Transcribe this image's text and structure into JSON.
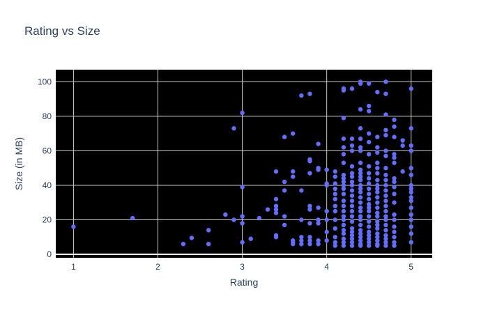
{
  "chart_data": {
    "type": "scatter",
    "title": "Rating vs Size",
    "xlabel": "Rating",
    "ylabel": "Size (in MB)",
    "xlim": [
      0.79,
      5.25
    ],
    "ylim": [
      -2,
      107
    ],
    "x_ticks": [
      1,
      2,
      3,
      4,
      5
    ],
    "y_ticks": [
      0,
      20,
      40,
      60,
      80,
      100
    ],
    "grid": true,
    "background": "#000000",
    "marker_color": "#636efa",
    "points": [
      [
        1.0,
        16
      ],
      [
        1.7,
        21
      ],
      [
        2.3,
        6
      ],
      [
        2.4,
        9.5
      ],
      [
        2.6,
        6
      ],
      [
        2.6,
        14
      ],
      [
        2.8,
        23
      ],
      [
        2.9,
        20
      ],
      [
        2.9,
        73
      ],
      [
        3.0,
        7
      ],
      [
        3.0,
        18
      ],
      [
        3.0,
        22
      ],
      [
        3.0,
        39
      ],
      [
        3.0,
        82
      ],
      [
        3.1,
        9
      ],
      [
        3.2,
        21
      ],
      [
        3.3,
        26
      ],
      [
        3.4,
        10
      ],
      [
        3.4,
        11
      ],
      [
        3.4,
        24
      ],
      [
        3.4,
        26
      ],
      [
        3.4,
        28
      ],
      [
        3.4,
        32
      ],
      [
        3.4,
        48
      ],
      [
        3.5,
        17
      ],
      [
        3.5,
        22
      ],
      [
        3.5,
        37
      ],
      [
        3.5,
        42
      ],
      [
        3.5,
        68
      ],
      [
        3.6,
        6
      ],
      [
        3.6,
        7
      ],
      [
        3.6,
        8
      ],
      [
        3.6,
        45
      ],
      [
        3.6,
        48
      ],
      [
        3.6,
        70
      ],
      [
        3.7,
        6
      ],
      [
        3.7,
        8
      ],
      [
        3.7,
        10
      ],
      [
        3.7,
        20
      ],
      [
        3.7,
        37
      ],
      [
        3.7,
        92
      ],
      [
        3.8,
        6
      ],
      [
        3.8,
        8
      ],
      [
        3.8,
        10
      ],
      [
        3.8,
        18
      ],
      [
        3.8,
        26
      ],
      [
        3.8,
        28
      ],
      [
        3.8,
        47
      ],
      [
        3.8,
        54
      ],
      [
        3.8,
        55
      ],
      [
        3.8,
        93
      ],
      [
        3.9,
        6
      ],
      [
        3.9,
        8
      ],
      [
        3.9,
        18
      ],
      [
        3.9,
        20
      ],
      [
        3.9,
        27
      ],
      [
        3.9,
        49
      ],
      [
        3.9,
        50
      ],
      [
        3.9,
        64
      ],
      [
        4.0,
        8
      ],
      [
        4.0,
        13
      ],
      [
        4.0,
        20
      ],
      [
        4.0,
        25
      ],
      [
        4.0,
        40
      ],
      [
        4.0,
        41
      ],
      [
        4.0,
        49
      ],
      [
        4.1,
        5
      ],
      [
        4.1,
        7
      ],
      [
        4.1,
        10
      ],
      [
        4.1,
        15
      ],
      [
        4.1,
        20
      ],
      [
        4.1,
        25
      ],
      [
        4.1,
        28
      ],
      [
        4.1,
        32
      ],
      [
        4.1,
        35
      ],
      [
        4.1,
        38
      ],
      [
        4.1,
        41
      ],
      [
        4.1,
        45
      ],
      [
        4.1,
        48
      ],
      [
        4.2,
        5
      ],
      [
        4.2,
        7
      ],
      [
        4.2,
        9
      ],
      [
        4.2,
        12
      ],
      [
        4.2,
        14
      ],
      [
        4.2,
        17
      ],
      [
        4.2,
        20
      ],
      [
        4.2,
        22
      ],
      [
        4.2,
        25
      ],
      [
        4.2,
        28
      ],
      [
        4.2,
        31
      ],
      [
        4.2,
        35
      ],
      [
        4.2,
        38
      ],
      [
        4.2,
        40
      ],
      [
        4.2,
        42
      ],
      [
        4.2,
        44
      ],
      [
        4.2,
        46
      ],
      [
        4.2,
        53
      ],
      [
        4.2,
        58
      ],
      [
        4.2,
        62
      ],
      [
        4.2,
        67
      ],
      [
        4.2,
        79
      ],
      [
        4.2,
        95
      ],
      [
        4.2,
        96
      ],
      [
        4.3,
        5
      ],
      [
        4.3,
        7
      ],
      [
        4.3,
        9
      ],
      [
        4.3,
        11
      ],
      [
        4.3,
        13
      ],
      [
        4.3,
        15
      ],
      [
        4.3,
        19
      ],
      [
        4.3,
        22
      ],
      [
        4.3,
        25
      ],
      [
        4.3,
        28
      ],
      [
        4.3,
        31
      ],
      [
        4.3,
        34
      ],
      [
        4.3,
        37
      ],
      [
        4.3,
        40
      ],
      [
        4.3,
        42
      ],
      [
        4.3,
        45
      ],
      [
        4.3,
        47
      ],
      [
        4.3,
        51
      ],
      [
        4.3,
        60
      ],
      [
        4.3,
        63
      ],
      [
        4.3,
        67
      ],
      [
        4.3,
        96
      ],
      [
        4.4,
        5
      ],
      [
        4.4,
        6
      ],
      [
        4.4,
        8
      ],
      [
        4.4,
        10
      ],
      [
        4.4,
        12
      ],
      [
        4.4,
        14
      ],
      [
        4.4,
        17
      ],
      [
        4.4,
        20
      ],
      [
        4.4,
        22
      ],
      [
        4.4,
        25
      ],
      [
        4.4,
        27
      ],
      [
        4.4,
        30
      ],
      [
        4.4,
        33
      ],
      [
        4.4,
        36
      ],
      [
        4.4,
        38
      ],
      [
        4.4,
        40
      ],
      [
        4.4,
        43
      ],
      [
        4.4,
        45
      ],
      [
        4.4,
        47
      ],
      [
        4.4,
        49
      ],
      [
        4.4,
        53
      ],
      [
        4.4,
        60
      ],
      [
        4.4,
        62
      ],
      [
        4.4,
        67
      ],
      [
        4.4,
        73
      ],
      [
        4.4,
        84
      ],
      [
        4.4,
        99
      ],
      [
        4.4,
        100
      ],
      [
        4.5,
        5
      ],
      [
        4.5,
        7
      ],
      [
        4.5,
        9
      ],
      [
        4.5,
        11
      ],
      [
        4.5,
        13
      ],
      [
        4.5,
        16
      ],
      [
        4.5,
        19
      ],
      [
        4.5,
        22
      ],
      [
        4.5,
        25
      ],
      [
        4.5,
        27
      ],
      [
        4.5,
        29
      ],
      [
        4.5,
        32
      ],
      [
        4.5,
        35
      ],
      [
        4.5,
        38
      ],
      [
        4.5,
        41
      ],
      [
        4.5,
        44
      ],
      [
        4.5,
        47
      ],
      [
        4.5,
        51
      ],
      [
        4.5,
        58
      ],
      [
        4.5,
        65
      ],
      [
        4.5,
        70
      ],
      [
        4.5,
        83
      ],
      [
        4.5,
        86
      ],
      [
        4.5,
        99
      ],
      [
        4.6,
        5
      ],
      [
        4.6,
        6
      ],
      [
        4.6,
        8
      ],
      [
        4.6,
        10
      ],
      [
        4.6,
        12
      ],
      [
        4.6,
        15
      ],
      [
        4.6,
        17
      ],
      [
        4.6,
        19
      ],
      [
        4.6,
        22
      ],
      [
        4.6,
        24
      ],
      [
        4.6,
        27
      ],
      [
        4.6,
        30
      ],
      [
        4.6,
        33
      ],
      [
        4.6,
        36
      ],
      [
        4.6,
        38
      ],
      [
        4.6,
        40
      ],
      [
        4.6,
        43
      ],
      [
        4.6,
        47
      ],
      [
        4.6,
        50
      ],
      [
        4.6,
        53
      ],
      [
        4.6,
        59
      ],
      [
        4.6,
        62
      ],
      [
        4.6,
        68
      ],
      [
        4.6,
        94
      ],
      [
        4.7,
        5
      ],
      [
        4.7,
        7
      ],
      [
        4.7,
        9
      ],
      [
        4.7,
        11
      ],
      [
        4.7,
        14
      ],
      [
        4.7,
        17
      ],
      [
        4.7,
        20
      ],
      [
        4.7,
        22
      ],
      [
        4.7,
        25
      ],
      [
        4.7,
        28
      ],
      [
        4.7,
        31
      ],
      [
        4.7,
        34
      ],
      [
        4.7,
        37
      ],
      [
        4.7,
        40
      ],
      [
        4.7,
        43
      ],
      [
        4.7,
        46
      ],
      [
        4.7,
        50
      ],
      [
        4.7,
        57
      ],
      [
        4.7,
        60
      ],
      [
        4.7,
        69
      ],
      [
        4.7,
        72
      ],
      [
        4.7,
        81
      ],
      [
        4.7,
        93
      ],
      [
        4.7,
        100
      ],
      [
        4.8,
        5
      ],
      [
        4.8,
        7
      ],
      [
        4.8,
        10
      ],
      [
        4.8,
        13
      ],
      [
        4.8,
        16
      ],
      [
        4.8,
        20
      ],
      [
        4.8,
        23
      ],
      [
        4.8,
        30
      ],
      [
        4.8,
        35
      ],
      [
        4.8,
        39
      ],
      [
        4.8,
        42
      ],
      [
        4.8,
        44
      ],
      [
        4.8,
        53
      ],
      [
        4.8,
        56
      ],
      [
        4.8,
        58
      ],
      [
        4.8,
        68
      ],
      [
        4.8,
        74
      ],
      [
        4.8,
        78
      ],
      [
        4.9,
        48
      ],
      [
        4.9,
        63
      ],
      [
        4.9,
        66
      ],
      [
        5.0,
        7
      ],
      [
        5.0,
        12
      ],
      [
        5.0,
        16
      ],
      [
        5.0,
        20
      ],
      [
        5.0,
        23
      ],
      [
        5.0,
        27
      ],
      [
        5.0,
        31
      ],
      [
        5.0,
        33
      ],
      [
        5.0,
        36
      ],
      [
        5.0,
        38
      ],
      [
        5.0,
        40
      ],
      [
        5.0,
        46
      ],
      [
        5.0,
        50
      ],
      [
        5.0,
        60
      ],
      [
        5.0,
        63
      ],
      [
        5.0,
        73
      ],
      [
        5.0,
        96
      ]
    ]
  }
}
